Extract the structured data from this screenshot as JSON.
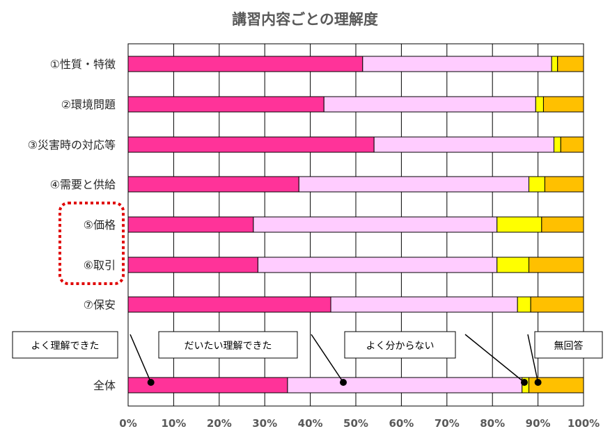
{
  "chart_data": {
    "type": "bar",
    "orientation": "horizontal",
    "stacked": "percent",
    "title": "講習内容ごとの理解度",
    "categories": [
      "①性質・特徴",
      "②環境問題",
      "③災害時の対応等",
      "④需要と供給",
      "⑤価格",
      "⑥取引",
      "⑦保安",
      "全体"
    ],
    "series": [
      {
        "name": "よく理解できた",
        "color": "#FF3399",
        "values": [
          51.5,
          43.0,
          54.0,
          37.5,
          27.5,
          28.5,
          44.5,
          35.0
        ]
      },
      {
        "name": "だいたい理解できた",
        "color": "#FFCCFF",
        "values": [
          41.5,
          46.5,
          39.5,
          50.5,
          53.5,
          52.5,
          41.0,
          51.5
        ]
      },
      {
        "name": "よく分からない",
        "color": "#FFFF00",
        "values": [
          1.3,
          1.7,
          1.5,
          3.5,
          9.8,
          7.0,
          2.9,
          1.5
        ]
      },
      {
        "name": "無回答",
        "color": "#FFC000",
        "values": [
          5.7,
          8.8,
          5.0,
          8.5,
          9.2,
          12.0,
          11.6,
          12.0
        ]
      }
    ],
    "xlim": [
      0,
      100
    ],
    "xticks": [
      "0%",
      "10%",
      "20%",
      "30%",
      "40%",
      "50%",
      "60%",
      "70%",
      "80%",
      "90%",
      "100%"
    ],
    "grid": true,
    "legend": "callouts",
    "highlight": {
      "categories": [
        "⑤価格",
        "⑥取引"
      ],
      "style": "red dotted rounded box",
      "color": "#E00000"
    }
  }
}
